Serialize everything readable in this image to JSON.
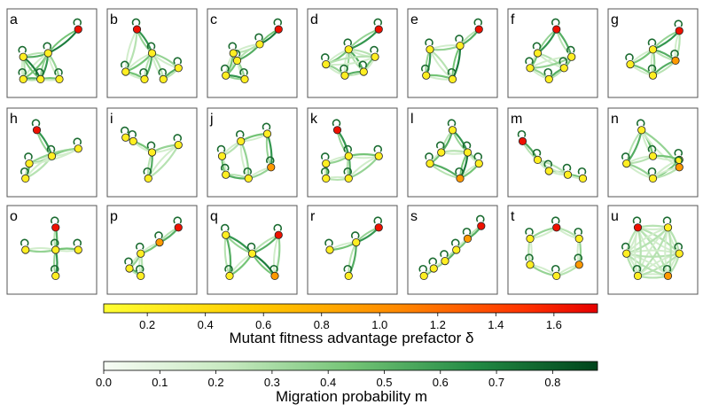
{
  "panels": [
    {
      "letter": "a"
    },
    {
      "letter": "b"
    },
    {
      "letter": "c"
    },
    {
      "letter": "d"
    },
    {
      "letter": "e"
    },
    {
      "letter": "f"
    },
    {
      "letter": "g"
    },
    {
      "letter": "h"
    },
    {
      "letter": "i"
    },
    {
      "letter": "j"
    },
    {
      "letter": "k"
    },
    {
      "letter": "l"
    },
    {
      "letter": "m"
    },
    {
      "letter": "n"
    },
    {
      "letter": "o"
    },
    {
      "letter": "p"
    },
    {
      "letter": "q"
    },
    {
      "letter": "r"
    },
    {
      "letter": "s"
    },
    {
      "letter": "t"
    },
    {
      "letter": "u"
    }
  ],
  "colorbar_fitness": {
    "title": "Mutant fitness advantage prefactor δ",
    "ticks": [
      "0.2",
      "0.4",
      "0.6",
      "0.8",
      "1.0",
      "1.2",
      "1.4",
      "1.6"
    ],
    "tick_values": [
      0.2,
      0.4,
      0.6,
      0.8,
      1.0,
      1.2,
      1.4,
      1.6
    ],
    "range": [
      0.05,
      1.75
    ],
    "colors": [
      "#ffff33",
      "#ffcc00",
      "#ff8800",
      "#ff3300",
      "#e60000"
    ]
  },
  "colorbar_migration": {
    "title": "Migration probability m",
    "ticks": [
      "0.0",
      "0.1",
      "0.2",
      "0.3",
      "0.4",
      "0.5",
      "0.6",
      "0.7",
      "0.8"
    ],
    "tick_values": [
      0.0,
      0.1,
      0.2,
      0.3,
      0.4,
      0.5,
      0.6,
      0.7,
      0.8
    ],
    "range": [
      0.0,
      0.88
    ],
    "colors": [
      "#f7fcf5",
      "#c7e9c0",
      "#74c476",
      "#238b45",
      "#00441b"
    ]
  }
}
